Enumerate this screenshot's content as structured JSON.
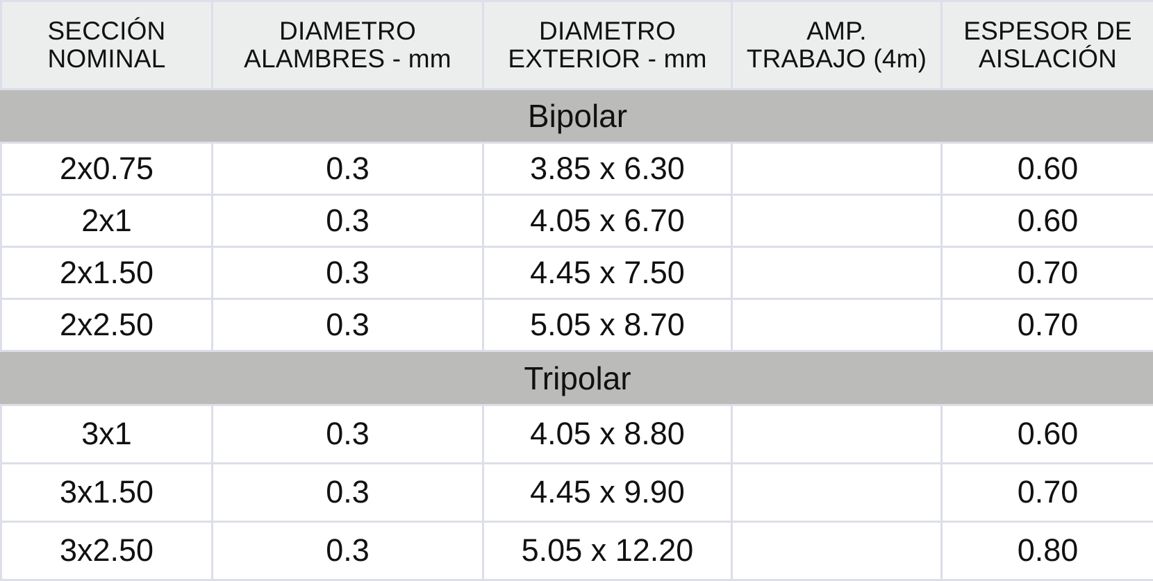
{
  "columns": [
    {
      "line1": "SECCIÓN",
      "line2": "NOMINAL"
    },
    {
      "line1": "DIAMETRO",
      "line2": "ALAMBRES - mm"
    },
    {
      "line1": "DIAMETRO",
      "line2": "EXTERIOR - mm"
    },
    {
      "line1": "AMP.",
      "line2": "TRABAJO (4m)"
    },
    {
      "line1": "ESPESOR DE",
      "line2": "AISLACIÓN"
    }
  ],
  "groups": [
    {
      "name": "Bipolar",
      "rows": [
        {
          "seccion": "2x0.75",
          "alambres": "0.3",
          "exterior": "3.85 x 6.30",
          "amp": "",
          "espesor": "0.60"
        },
        {
          "seccion": "2x1",
          "alambres": "0.3",
          "exterior": "4.05 x 6.70",
          "amp": "",
          "espesor": "0.60"
        },
        {
          "seccion": "2x1.50",
          "alambres": "0.3",
          "exterior": "4.45 x 7.50",
          "amp": "",
          "espesor": "0.70"
        },
        {
          "seccion": "2x2.50",
          "alambres": "0.3",
          "exterior": "5.05 x 8.70",
          "amp": "",
          "espesor": "0.70"
        }
      ]
    },
    {
      "name": "Tripolar",
      "rows": [
        {
          "seccion": "3x1",
          "alambres": "0.3",
          "exterior": "4.05 x 8.80",
          "amp": "",
          "espesor": "0.60"
        },
        {
          "seccion": "3x1.50",
          "alambres": "0.3",
          "exterior": "4.45 x 9.90",
          "amp": "",
          "espesor": "0.70"
        },
        {
          "seccion": "3x2.50",
          "alambres": "0.3",
          "exterior": "5.05 x 12.20",
          "amp": "",
          "espesor": "0.80"
        }
      ]
    }
  ]
}
